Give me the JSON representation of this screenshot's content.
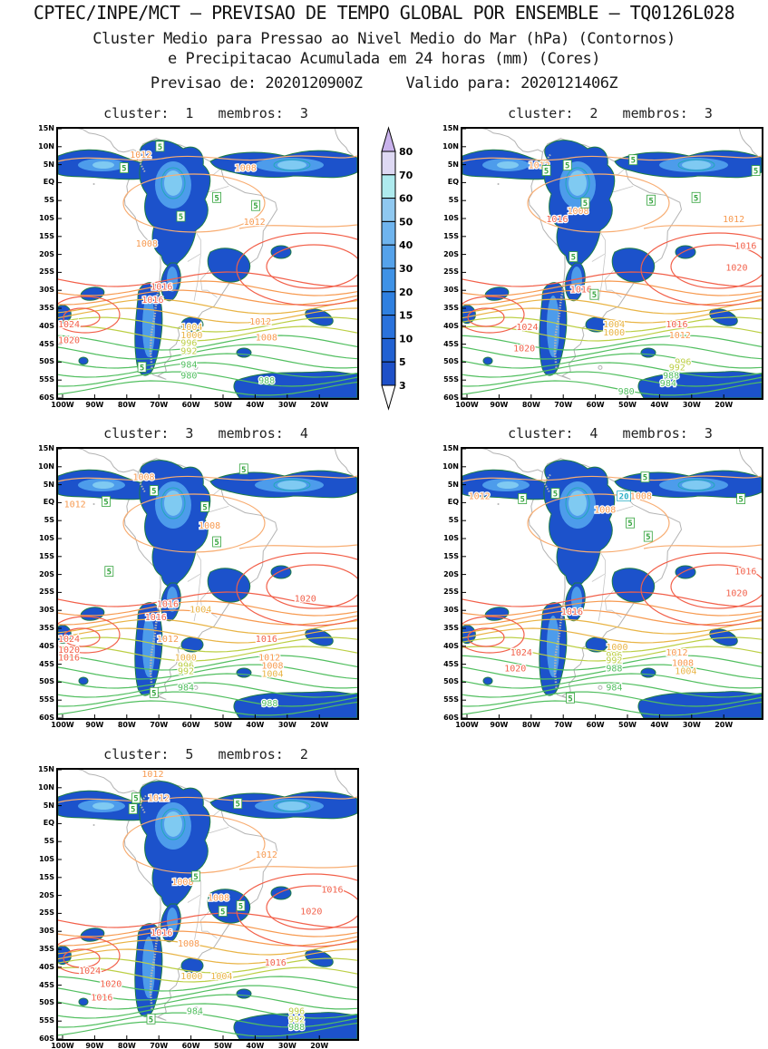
{
  "header": {
    "title": "CPTEC/INPE/MCT — PREVISAO DE TEMPO GLOBAL POR ENSEMBLE — TQ0126L028",
    "subtitle_line1": "Cluster Medio para Pressao ao Nivel Medio do Mar (hPa) (Contornos)",
    "subtitle_line2": "e Precipitacao Acumulada em 24 horas (mm) (Cores)",
    "forecast_label": "Previsao de:",
    "forecast_value": "2020120900Z",
    "valid_label": "Valido para:",
    "valid_value": "2020121406Z"
  },
  "chart_data": {
    "type": "heatmap",
    "subtype": "ensemble-cluster-weather-maps",
    "fill_variable": "Precipitacao Acumulada em 24 horas (mm)",
    "contour_variable": "Pressao ao Nivel Medio do Mar (hPa)",
    "region": "South America",
    "lat_ticks": [
      "15N",
      "10N",
      "5N",
      "EQ",
      "5S",
      "10S",
      "15S",
      "20S",
      "25S",
      "30S",
      "35S",
      "40S",
      "45S",
      "50S",
      "55S",
      "60S"
    ],
    "lon_ticks": [
      "100W",
      "90W",
      "80W",
      "70W",
      "60W",
      "50W",
      "40W",
      "30W",
      "20W"
    ],
    "colorbar": {
      "levels": [
        3,
        5,
        10,
        15,
        20,
        30,
        40,
        50,
        60,
        70,
        80
      ],
      "segment_colors": [
        "#1e50c8",
        "#2161d2",
        "#2a72dc",
        "#2f80e0",
        "#3f92e6",
        "#55a2ea",
        "#6fb4ee",
        "#8fc8f0",
        "#aeeaee",
        "#ded9f3"
      ],
      "over_color": "#c9b2ec",
      "under_color": "#ffffff",
      "units": "mm"
    },
    "pressure_levels_labeled": [
      980,
      984,
      988,
      992,
      996,
      1000,
      1004,
      1008,
      1012,
      1016,
      1020,
      1024
    ],
    "precip_contours_labeled": [
      5,
      20
    ],
    "palette": {
      "red": "#f2604a",
      "orange": "#f79a50",
      "amber": "#e9b445",
      "yg": "#bccf45",
      "green": "#52bf60",
      "precip": "#33a33c",
      "teal": "#2fb0c8",
      "precip_dark": "#1c52cb",
      "precip_mid": "#4d9ceb",
      "precip_light": "#7fcaf2",
      "precip_edge": "#1e7d46",
      "coast": "#b3b3b3"
    },
    "panels": [
      {
        "title": "cluster:  1   membros:  3",
        "cluster": 1,
        "membros": 3,
        "labels": [
          {
            "v": "1012",
            "c": "orange",
            "x": 24,
            "y": 8
          },
          {
            "v": "1008",
            "c": "orange",
            "x": 59,
            "y": 13
          },
          {
            "v": "1008",
            "c": "orange",
            "x": 26,
            "y": 41
          },
          {
            "v": "1012",
            "c": "orange",
            "x": 62,
            "y": 33
          },
          {
            "v": "1016",
            "c": "red",
            "x": 31,
            "y": 57
          },
          {
            "v": "1016",
            "c": "red",
            "x": 28,
            "y": 62
          },
          {
            "v": "1024",
            "c": "red",
            "x": 0,
            "y": 71
          },
          {
            "v": "1020",
            "c": "red",
            "x": 0,
            "y": 77
          },
          {
            "v": "1012",
            "c": "orange",
            "x": 64,
            "y": 70
          },
          {
            "v": "1008",
            "c": "orange",
            "x": 66,
            "y": 76
          },
          {
            "v": "1004",
            "c": "amber",
            "x": 41,
            "y": 72
          },
          {
            "v": "1000",
            "c": "amber",
            "x": 41,
            "y": 75
          },
          {
            "v": "996",
            "c": "yg",
            "x": 41,
            "y": 78
          },
          {
            "v": "992",
            "c": "yg",
            "x": 41,
            "y": 81
          },
          {
            "v": "984",
            "c": "green",
            "x": 41,
            "y": 86
          },
          {
            "v": "980",
            "c": "green",
            "x": 41,
            "y": 90
          },
          {
            "v": "988",
            "c": "green",
            "x": 67,
            "y": 92
          },
          {
            "v": "5",
            "c": "precip",
            "x": 33,
            "y": 5
          },
          {
            "v": "5",
            "c": "precip",
            "x": 21,
            "y": 13
          },
          {
            "v": "5",
            "c": "precip",
            "x": 52,
            "y": 24
          },
          {
            "v": "5",
            "c": "precip",
            "x": 40,
            "y": 31
          },
          {
            "v": "5",
            "c": "precip",
            "x": 65,
            "y": 27
          },
          {
            "v": "5",
            "c": "precip",
            "x": 27,
            "y": 87
          }
        ]
      },
      {
        "title": "cluster:  2   membros:  3",
        "cluster": 2,
        "membros": 3,
        "labels": [
          {
            "v": "1012",
            "c": "orange",
            "x": 22,
            "y": 12
          },
          {
            "v": "1008",
            "c": "orange",
            "x": 35,
            "y": 29
          },
          {
            "v": "1016",
            "c": "red",
            "x": 28,
            "y": 32
          },
          {
            "v": "1012",
            "c": "orange",
            "x": 87,
            "y": 32
          },
          {
            "v": "1016",
            "c": "red",
            "x": 91,
            "y": 42
          },
          {
            "v": "1020",
            "c": "red",
            "x": 88,
            "y": 50
          },
          {
            "v": "1016",
            "c": "red",
            "x": 36,
            "y": 58
          },
          {
            "v": "1024",
            "c": "red",
            "x": 18,
            "y": 72
          },
          {
            "v": "1020",
            "c": "red",
            "x": 17,
            "y": 80
          },
          {
            "v": "1004",
            "c": "amber",
            "x": 47,
            "y": 71
          },
          {
            "v": "1000",
            "c": "amber",
            "x": 47,
            "y": 74
          },
          {
            "v": "1016",
            "c": "red",
            "x": 68,
            "y": 71
          },
          {
            "v": "1012",
            "c": "orange",
            "x": 69,
            "y": 75
          },
          {
            "v": "996",
            "c": "yg",
            "x": 71,
            "y": 85
          },
          {
            "v": "992",
            "c": "yg",
            "x": 69,
            "y": 87
          },
          {
            "v": "988",
            "c": "green",
            "x": 67,
            "y": 90
          },
          {
            "v": "984",
            "c": "green",
            "x": 66,
            "y": 93
          },
          {
            "v": "980",
            "c": "green",
            "x": 52,
            "y": 96
          },
          {
            "v": "5",
            "c": "precip",
            "x": 27,
            "y": 14
          },
          {
            "v": "5",
            "c": "precip",
            "x": 34,
            "y": 12
          },
          {
            "v": "5",
            "c": "precip",
            "x": 56,
            "y": 10
          },
          {
            "v": "5",
            "c": "precip",
            "x": 40,
            "y": 26
          },
          {
            "v": "5",
            "c": "precip",
            "x": 62,
            "y": 25
          },
          {
            "v": "5",
            "c": "precip",
            "x": 77,
            "y": 24
          },
          {
            "v": "5",
            "c": "precip",
            "x": 97,
            "y": 14
          },
          {
            "v": "5",
            "c": "precip",
            "x": 36,
            "y": 46
          },
          {
            "v": "5",
            "c": "precip",
            "x": 43,
            "y": 60
          }
        ]
      },
      {
        "title": "cluster:  3   membros:  4",
        "cluster": 3,
        "membros": 4,
        "labels": [
          {
            "v": "1008",
            "c": "orange",
            "x": 25,
            "y": 9
          },
          {
            "v": "1012",
            "c": "orange",
            "x": 2,
            "y": 19
          },
          {
            "v": "1008",
            "c": "orange",
            "x": 47,
            "y": 27
          },
          {
            "v": "1016",
            "c": "red",
            "x": 33,
            "y": 56
          },
          {
            "v": "1016",
            "c": "red",
            "x": 29,
            "y": 61
          },
          {
            "v": "1020",
            "c": "red",
            "x": 79,
            "y": 54
          },
          {
            "v": "1024",
            "c": "red",
            "x": 0,
            "y": 69
          },
          {
            "v": "1020",
            "c": "red",
            "x": 0,
            "y": 73
          },
          {
            "v": "1016",
            "c": "red",
            "x": 0,
            "y": 76
          },
          {
            "v": "1012",
            "c": "orange",
            "x": 33,
            "y": 69
          },
          {
            "v": "1004",
            "c": "amber",
            "x": 44,
            "y": 58
          },
          {
            "v": "1016",
            "c": "red",
            "x": 66,
            "y": 69
          },
          {
            "v": "1012",
            "c": "orange",
            "x": 67,
            "y": 76
          },
          {
            "v": "1008",
            "c": "orange",
            "x": 68,
            "y": 79
          },
          {
            "v": "1004",
            "c": "amber",
            "x": 68,
            "y": 82
          },
          {
            "v": "1000",
            "c": "amber",
            "x": 39,
            "y": 76
          },
          {
            "v": "996",
            "c": "yg",
            "x": 40,
            "y": 79
          },
          {
            "v": "992",
            "c": "yg",
            "x": 40,
            "y": 81
          },
          {
            "v": "984",
            "c": "green",
            "x": 40,
            "y": 87
          },
          {
            "v": "988",
            "c": "green",
            "x": 68,
            "y": 93
          },
          {
            "v": "5",
            "c": "precip",
            "x": 15,
            "y": 18
          },
          {
            "v": "5",
            "c": "precip",
            "x": 31,
            "y": 14
          },
          {
            "v": "5",
            "c": "precip",
            "x": 48,
            "y": 20
          },
          {
            "v": "5",
            "c": "precip",
            "x": 61,
            "y": 6
          },
          {
            "v": "5",
            "c": "precip",
            "x": 52,
            "y": 33
          },
          {
            "v": "5",
            "c": "precip",
            "x": 31,
            "y": 89
          },
          {
            "v": "5",
            "c": "precip",
            "x": 16,
            "y": 44
          }
        ]
      },
      {
        "title": "cluster:  4   membros:  3",
        "cluster": 4,
        "membros": 3,
        "labels": [
          {
            "v": "1012",
            "c": "orange",
            "x": 2,
            "y": 16
          },
          {
            "v": "1008",
            "c": "orange",
            "x": 56,
            "y": 16
          },
          {
            "v": "1008",
            "c": "orange",
            "x": 44,
            "y": 21
          },
          {
            "v": "1016",
            "c": "red",
            "x": 33,
            "y": 59
          },
          {
            "v": "1016",
            "c": "red",
            "x": 91,
            "y": 44
          },
          {
            "v": "1020",
            "c": "red",
            "x": 88,
            "y": 52
          },
          {
            "v": "1024",
            "c": "red",
            "x": 16,
            "y": 74
          },
          {
            "v": "1020",
            "c": "red",
            "x": 14,
            "y": 80
          },
          {
            "v": "1000",
            "c": "amber",
            "x": 48,
            "y": 72
          },
          {
            "v": "996",
            "c": "yg",
            "x": 48,
            "y": 75
          },
          {
            "v": "992",
            "c": "yg",
            "x": 48,
            "y": 77
          },
          {
            "v": "988",
            "c": "green",
            "x": 48,
            "y": 80
          },
          {
            "v": "984",
            "c": "green",
            "x": 48,
            "y": 87
          },
          {
            "v": "1012",
            "c": "orange",
            "x": 68,
            "y": 74
          },
          {
            "v": "1008",
            "c": "orange",
            "x": 70,
            "y": 78
          },
          {
            "v": "1004",
            "c": "amber",
            "x": 71,
            "y": 81
          },
          {
            "v": "20",
            "c": "teal",
            "x": 52,
            "y": 16
          },
          {
            "v": "5",
            "c": "precip",
            "x": 19,
            "y": 17
          },
          {
            "v": "5",
            "c": "precip",
            "x": 30,
            "y": 15
          },
          {
            "v": "5",
            "c": "precip",
            "x": 60,
            "y": 9
          },
          {
            "v": "5",
            "c": "precip",
            "x": 92,
            "y": 17
          },
          {
            "v": "5",
            "c": "precip",
            "x": 55,
            "y": 26
          },
          {
            "v": "5",
            "c": "precip",
            "x": 61,
            "y": 31
          },
          {
            "v": "5",
            "c": "precip",
            "x": 35,
            "y": 91
          }
        ]
      },
      {
        "title": "cluster:  5   membros:  2",
        "cluster": 5,
        "membros": 2,
        "labels": [
          {
            "v": "1012",
            "c": "orange",
            "x": 28,
            "y": 0
          },
          {
            "v": "1012",
            "c": "orange",
            "x": 30,
            "y": 9
          },
          {
            "v": "1012",
            "c": "orange",
            "x": 66,
            "y": 30
          },
          {
            "v": "1008",
            "c": "orange",
            "x": 38,
            "y": 40
          },
          {
            "v": "1008",
            "c": "orange",
            "x": 50,
            "y": 46
          },
          {
            "v": "1016",
            "c": "red",
            "x": 88,
            "y": 43
          },
          {
            "v": "1020",
            "c": "red",
            "x": 81,
            "y": 51
          },
          {
            "v": "1016",
            "c": "red",
            "x": 31,
            "y": 59
          },
          {
            "v": "1008",
            "c": "orange",
            "x": 40,
            "y": 63
          },
          {
            "v": "1016",
            "c": "red",
            "x": 69,
            "y": 70
          },
          {
            "v": "1024",
            "c": "red",
            "x": 7,
            "y": 73
          },
          {
            "v": "1020",
            "c": "red",
            "x": 14,
            "y": 78
          },
          {
            "v": "1016",
            "c": "red",
            "x": 11,
            "y": 83
          },
          {
            "v": "1000",
            "c": "amber",
            "x": 41,
            "y": 75
          },
          {
            "v": "1004",
            "c": "amber",
            "x": 51,
            "y": 75
          },
          {
            "v": "984",
            "c": "green",
            "x": 43,
            "y": 88
          },
          {
            "v": "996",
            "c": "yg",
            "x": 77,
            "y": 88
          },
          {
            "v": "992",
            "c": "yg",
            "x": 77,
            "y": 91
          },
          {
            "v": "988",
            "c": "green",
            "x": 77,
            "y": 94
          },
          {
            "v": "5",
            "c": "precip",
            "x": 25,
            "y": 9
          },
          {
            "v": "5",
            "c": "precip",
            "x": 24,
            "y": 13
          },
          {
            "v": "5",
            "c": "precip",
            "x": 59,
            "y": 11
          },
          {
            "v": "5",
            "c": "precip",
            "x": 45,
            "y": 38
          },
          {
            "v": "5",
            "c": "precip",
            "x": 54,
            "y": 51
          },
          {
            "v": "5",
            "c": "precip",
            "x": 60,
            "y": 49
          },
          {
            "v": "5",
            "c": "precip",
            "x": 30,
            "y": 91
          }
        ]
      }
    ]
  }
}
